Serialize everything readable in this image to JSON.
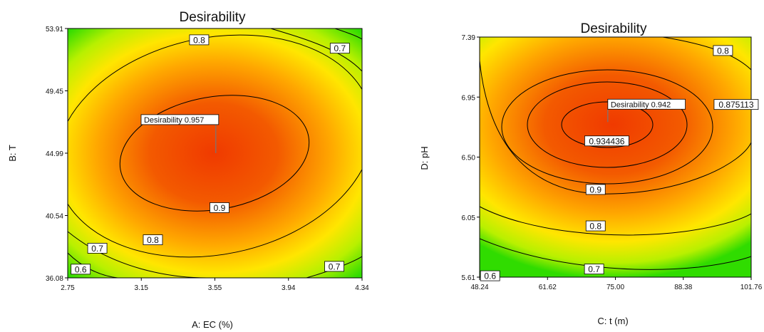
{
  "colors": {
    "center": "#f03a00",
    "mid": "#ffa800",
    "edge_yellow": "#ffee00",
    "edge_green": "#3ade00"
  },
  "chart_data": [
    {
      "type": "contour",
      "title": "Desirability",
      "xlabel": "A: EC (%)",
      "ylabel": "B: T",
      "xlim": [
        2.75,
        4.34
      ],
      "ylim": [
        36.08,
        53.91
      ],
      "x_ticks": [
        "2.75",
        "3.15",
        "3.55",
        "3.94",
        "4.34"
      ],
      "y_ticks": [
        "36.08",
        "40.54",
        "44.99",
        "49.45",
        "53.91"
      ],
      "optimum": {
        "label": "Desirability 0.957",
        "x": 3.55,
        "y": 45.0
      },
      "contour_labels": [
        {
          "text": "0.8",
          "x": 3.46,
          "y": 53.1
        },
        {
          "text": "0.7",
          "x": 4.22,
          "y": 52.5
        },
        {
          "text": "0.9",
          "x": 3.57,
          "y": 41.1
        },
        {
          "text": "0.8",
          "x": 3.21,
          "y": 38.8
        },
        {
          "text": "0.7",
          "x": 2.91,
          "y": 38.2
        },
        {
          "text": "0.6",
          "x": 2.82,
          "y": 36.7
        },
        {
          "text": "0.7",
          "x": 4.19,
          "y": 36.9
        }
      ]
    },
    {
      "type": "contour",
      "title": "Desirability",
      "xlabel": "C: t (m)",
      "ylabel": "D: pH",
      "xlim": [
        48.24,
        101.76
      ],
      "ylim": [
        5.61,
        7.39
      ],
      "x_ticks": [
        "48.24",
        "61.62",
        "75.00",
        "88.38",
        "101.76"
      ],
      "y_ticks": [
        "5.61",
        "6.05",
        "6.50",
        "6.95",
        "7.39"
      ],
      "optimum": {
        "label": "Desirability 0.942",
        "x": 73.5,
        "y": 6.76
      },
      "contour_labels": [
        {
          "text": "0.8",
          "x": 96.2,
          "y": 7.29
        },
        {
          "text": "0.875113",
          "x": 98.8,
          "y": 6.89
        },
        {
          "text": "0.934436",
          "x": 73.3,
          "y": 6.62
        },
        {
          "text": "0.9",
          "x": 71.1,
          "y": 6.26
        },
        {
          "text": "0.8",
          "x": 71.1,
          "y": 5.99
        },
        {
          "text": "0.7",
          "x": 70.8,
          "y": 5.67
        },
        {
          "text": "0.6",
          "x": 50.3,
          "y": 5.62
        }
      ]
    }
  ]
}
